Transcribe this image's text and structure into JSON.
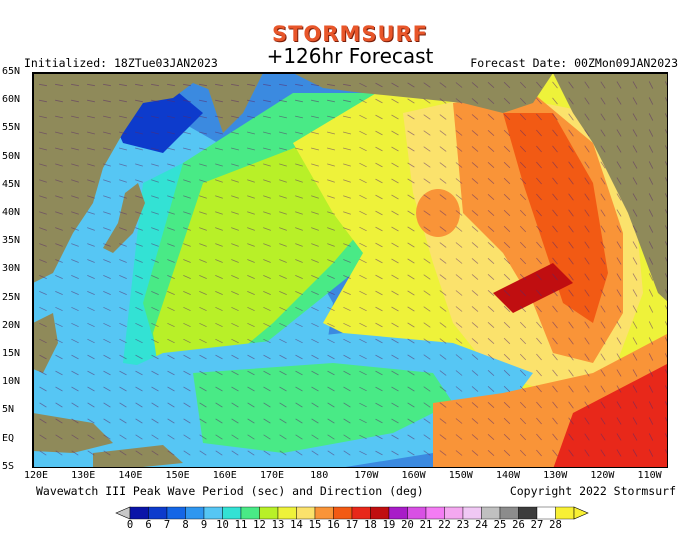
{
  "header": {
    "logo": "STORMSURF",
    "forecast_label": "+126hr Forecast",
    "initialized": "Initialized: 18ZTue03JAN2023",
    "forecast_date": "Forecast Date: 00ZMon09JAN2023"
  },
  "footer": {
    "product": "Wavewatch III Peak Wave Period (sec) and Direction (deg)",
    "copyright": "Copyright 2022 Stormsurf"
  },
  "map": {
    "lat_labels": [
      "65N",
      "60N",
      "55N",
      "50N",
      "45N",
      "40N",
      "35N",
      "30N",
      "25N",
      "20N",
      "15N",
      "10N",
      "5N",
      "EQ",
      "5S"
    ],
    "lon_labels": [
      "120E",
      "130E",
      "140E",
      "150E",
      "160E",
      "170E",
      "180",
      "170W",
      "160W",
      "150W",
      "140W",
      "130W",
      "120W",
      "110W"
    ],
    "land_color": "#8f8a5a",
    "ocean_background": "#3b8ae0"
  },
  "colorbar": {
    "labels": [
      "0",
      "6",
      "7",
      "8",
      "9",
      "10",
      "11",
      "12",
      "13",
      "14",
      "15",
      "16",
      "17",
      "18",
      "19",
      "20",
      "21",
      "22",
      "23",
      "24",
      "25",
      "26",
      "27",
      "28"
    ],
    "colors": [
      "#0a14a8",
      "#0d3bcc",
      "#1466e6",
      "#2f97f0",
      "#56c6f4",
      "#33e2d4",
      "#49ea86",
      "#b8f028",
      "#eef23a",
      "#fbe26c",
      "#f99438",
      "#f25a14",
      "#e8281a",
      "#c00e10",
      "#a81cc8",
      "#d850e4",
      "#f47cf4",
      "#f4a8f0",
      "#f0c8f4",
      "#c0c0c0",
      "#8c8c8c",
      "#3c3c3c",
      "#ffffff",
      "#f8f034"
    ]
  }
}
